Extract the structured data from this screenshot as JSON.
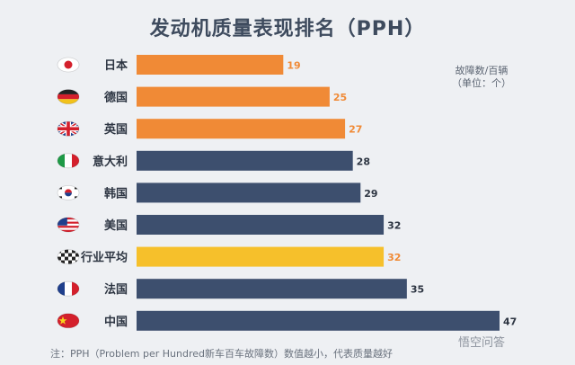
{
  "title": "发动机质量表现排名（PPH）",
  "unit_note": "故障数/百辆（单位：个）",
  "footnote": "注：PPH（Problem per Hundred新车百车故障数）数值越小，代表质量越好",
  "watermark": "悟空问答",
  "colors": {
    "orange": "#f08a36",
    "navy": "#3d4f6e",
    "yellow": "#f6c02b",
    "background": "#eef0f3"
  },
  "chart_data": {
    "type": "bar",
    "orientation": "horizontal",
    "title": "发动机质量表现排名（PPH）",
    "categories": [
      "日本",
      "德国",
      "英国",
      "意大利",
      "韩国",
      "美国",
      "行业平均",
      "法国",
      "中国"
    ],
    "values": [
      19,
      25,
      27,
      28,
      29,
      32,
      32,
      35,
      47
    ],
    "bar_colors": [
      "#f08a36",
      "#f08a36",
      "#f08a36",
      "#3d4f6e",
      "#3d4f6e",
      "#3d4f6e",
      "#f6c02b",
      "#3d4f6e",
      "#3d4f6e"
    ],
    "value_colors": [
      "#f08a36",
      "#f08a36",
      "#f08a36",
      "#2d3542",
      "#2d3542",
      "#2d3542",
      "#f08a36",
      "#2d3542",
      "#2d3542"
    ],
    "icons": [
      "japan-flag-icon",
      "germany-flag-icon",
      "uk-flag-icon",
      "italy-flag-icon",
      "korea-flag-icon",
      "usa-flag-icon",
      "checkered-flag-icon",
      "france-flag-icon",
      "china-flag-icon"
    ],
    "xlim": [
      0,
      47
    ],
    "grid": false
  }
}
